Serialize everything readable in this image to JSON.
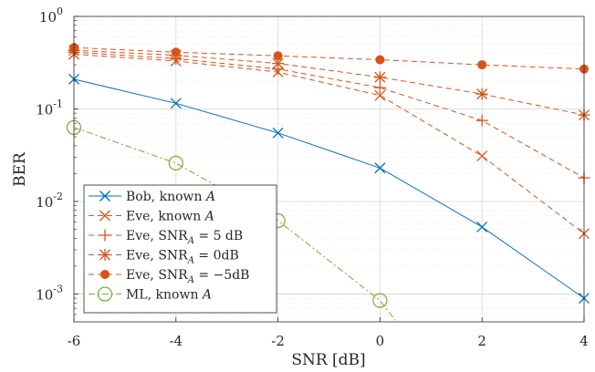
{
  "chart_data": {
    "type": "line",
    "xlabel": "SNR [dB]",
    "ylabel": "BER",
    "xlim": [
      -6,
      4
    ],
    "ylim": [
      0.0005,
      1
    ],
    "yscale": "log",
    "grid": true,
    "legend_position": "bottom-left",
    "x_ticks": [
      {
        "value": -6,
        "label": "-6"
      },
      {
        "value": -4,
        "label": "-4"
      },
      {
        "value": -2,
        "label": "-2"
      },
      {
        "value": 0,
        "label": "0"
      },
      {
        "value": 2,
        "label": "2"
      },
      {
        "value": 4,
        "label": "4"
      }
    ],
    "y_ticks": [
      {
        "value": 0.001,
        "base": "10",
        "exp": "-3"
      },
      {
        "value": 0.01,
        "base": "10",
        "exp": "-2"
      },
      {
        "value": 0.1,
        "base": "10",
        "exp": "-1"
      },
      {
        "value": 1,
        "base": "10",
        "exp": "0"
      }
    ],
    "series": [
      {
        "key": "bob-known",
        "legend": [
          "Bob, known ",
          "A"
        ],
        "color": "#0072BD",
        "line": "solid",
        "marker": "x",
        "x": [
          -6,
          -4,
          -2,
          0,
          2,
          4
        ],
        "y": [
          0.21,
          0.115,
          0.055,
          0.023,
          0.0053,
          0.0009
        ]
      },
      {
        "key": "eve-known",
        "legend": [
          "Eve, known ",
          "A"
        ],
        "color": "#D95319",
        "line": "dashed",
        "marker": "x",
        "x": [
          -6,
          -4,
          -2,
          0,
          2,
          4
        ],
        "y": [
          0.39,
          0.33,
          0.25,
          0.14,
          0.031,
          0.0045
        ]
      },
      {
        "key": "eve-snr-5",
        "legend": [
          "Eve, SNR",
          "A",
          " = 5 dB"
        ],
        "color": "#D95319",
        "line": "dashed",
        "marker": "+",
        "x": [
          -6,
          -4,
          -2,
          0,
          2,
          4
        ],
        "y": [
          0.41,
          0.35,
          0.27,
          0.17,
          0.075,
          0.018
        ]
      },
      {
        "key": "eve-snr-0",
        "legend": [
          "Eve, SNR",
          "A",
          " = 0dB"
        ],
        "color": "#D95319",
        "line": "dashed",
        "marker": "*",
        "x": [
          -6,
          -4,
          -2,
          0,
          2,
          4
        ],
        "y": [
          0.43,
          0.38,
          0.31,
          0.22,
          0.145,
          0.086
        ]
      },
      {
        "key": "eve-snr-m5",
        "legend": [
          "Eve, SNR",
          "A",
          " = −5dB"
        ],
        "color": "#D95319",
        "line": "dashed",
        "marker": "dot",
        "x": [
          -6,
          -4,
          -2,
          0,
          2,
          4
        ],
        "y": [
          0.46,
          0.41,
          0.375,
          0.34,
          0.3,
          0.27
        ]
      },
      {
        "key": "ml-known",
        "legend": [
          "ML, known ",
          "A"
        ],
        "color": "#77AC30",
        "line": "dashdot",
        "marker": "o",
        "x": [
          -6,
          -4,
          -2,
          0,
          0.3
        ],
        "y": [
          0.063,
          0.026,
          0.0062,
          0.00085,
          0.00052
        ],
        "marker_x": [
          -6,
          -4,
          -2,
          0
        ]
      }
    ]
  }
}
